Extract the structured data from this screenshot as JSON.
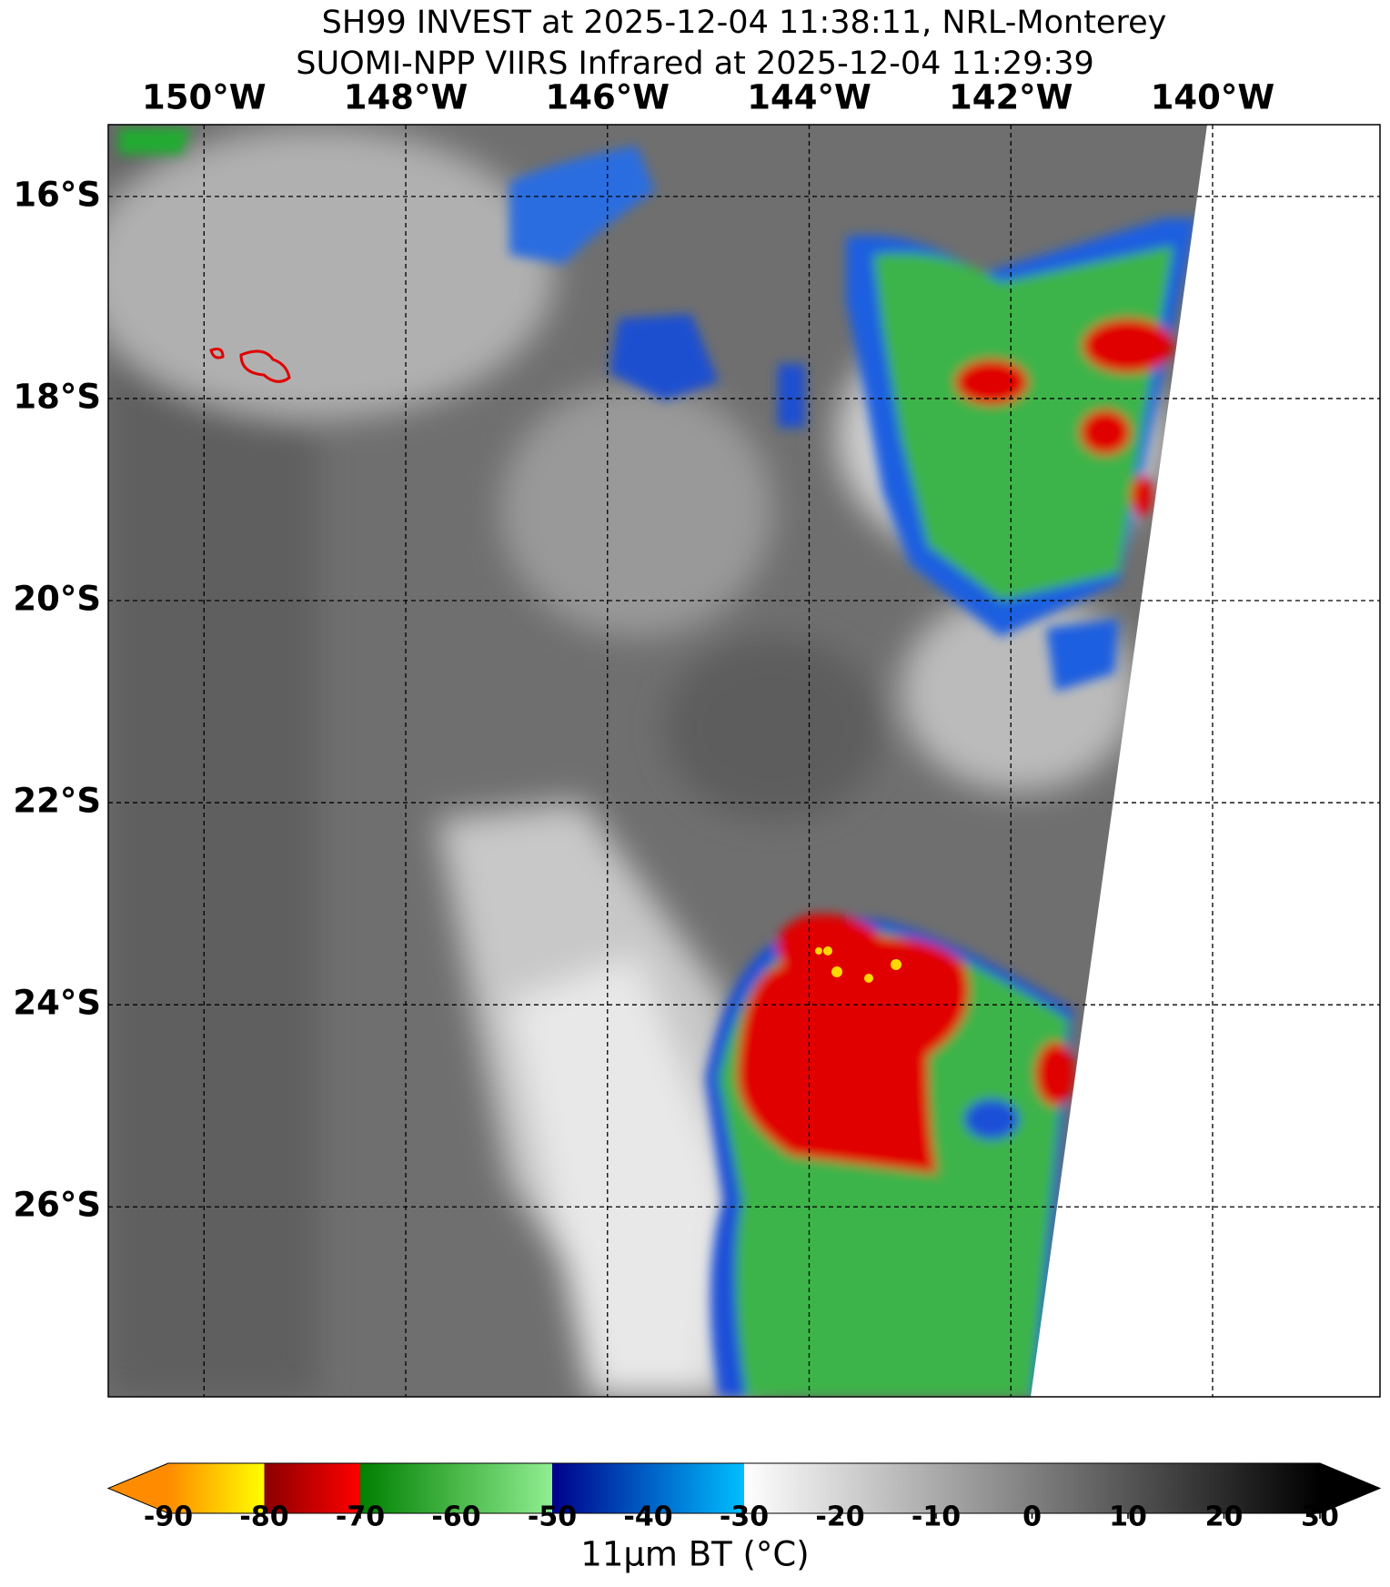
{
  "title": [
    "SH99 INVEST at 2025-12-04 11:38:11, NRL-Monterey",
    "SUOMI-NPP VIIRS Infrared at 2025-12-04 11:29:39"
  ],
  "map": {
    "lonlim": [
      -150.95,
      -138.34
    ],
    "latlim": [
      -27.88,
      -15.29
    ],
    "lon_ticks": [
      {
        "value": -150,
        "label": "150°W"
      },
      {
        "value": -148,
        "label": "148°W"
      },
      {
        "value": -146,
        "label": "146°W"
      },
      {
        "value": -144,
        "label": "144°W"
      },
      {
        "value": -142,
        "label": "142°W"
      },
      {
        "value": -140,
        "label": "140°W"
      }
    ],
    "lat_ticks": [
      {
        "value": -16,
        "label": "16°S"
      },
      {
        "value": -18,
        "label": "18°S"
      },
      {
        "value": -20,
        "label": "20°S"
      },
      {
        "value": -22,
        "label": "22°S"
      },
      {
        "value": -24,
        "label": "24°S"
      },
      {
        "value": -26,
        "label": "26°S"
      }
    ]
  },
  "colorbar": {
    "label": "11μm BT (°C)",
    "lim": [
      -90,
      30
    ],
    "ticks": [
      -90,
      -80,
      -70,
      -60,
      -50,
      -40,
      -30,
      -20,
      -10,
      0,
      10,
      20,
      30
    ],
    "segments": [
      {
        "from": -90,
        "to": -80,
        "colors": [
          "#ff8c00",
          "#ffff00"
        ]
      },
      {
        "from": -80,
        "to": -70,
        "colors": [
          "#8b0000",
          "#ff0000"
        ]
      },
      {
        "from": -70,
        "to": -50,
        "colors": [
          "#008000",
          "#90ee90"
        ]
      },
      {
        "from": -50,
        "to": -30,
        "colors": [
          "#00008b",
          "#00bfff"
        ]
      },
      {
        "from": -30,
        "to": 30,
        "colors": [
          "#ffffff",
          "#000000"
        ]
      }
    ]
  }
}
